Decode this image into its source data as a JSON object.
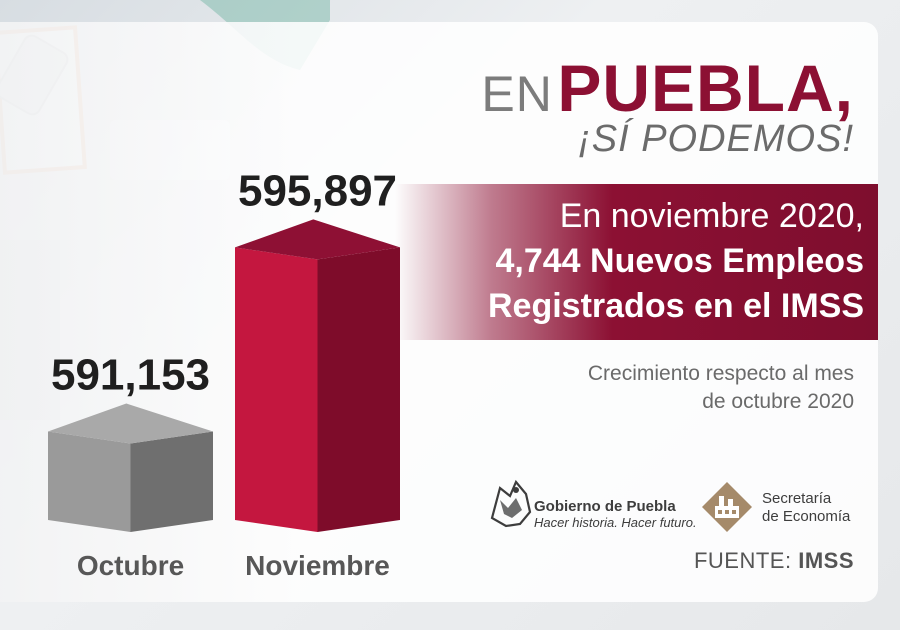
{
  "headline": {
    "en": "EN",
    "city": "PUEBLA,",
    "slogan": "¡SÍ PODEMOS!"
  },
  "band": {
    "line1": "En noviembre 2020,",
    "line2": "4,744 Nuevos Empleos",
    "line3": "Registrados en el IMSS"
  },
  "note": {
    "line1": "Crecimiento respecto al mes",
    "line2": "de octubre 2020"
  },
  "logos": {
    "gobierno_title": "Gobierno de Puebla",
    "gobierno_slogan": "Hacer historia. Hacer futuro.",
    "secretaria_line1": "Secretaría",
    "secretaria_line2": "de Economía"
  },
  "source": {
    "prefix": "FUENTE:",
    "name": "IMSS"
  },
  "colors": {
    "brand": "#8c1033",
    "bar_octubre": "#8a8a8a",
    "bar_noviembre": "#b0143c"
  },
  "chart_data": {
    "type": "bar",
    "categories": [
      "Octubre",
      "Noviembre"
    ],
    "values": [
      591153,
      595897
    ],
    "value_labels": [
      "591,153",
      "595,897"
    ],
    "title": "",
    "xlabel": "",
    "ylabel": "",
    "grid": false,
    "legend": "none"
  }
}
